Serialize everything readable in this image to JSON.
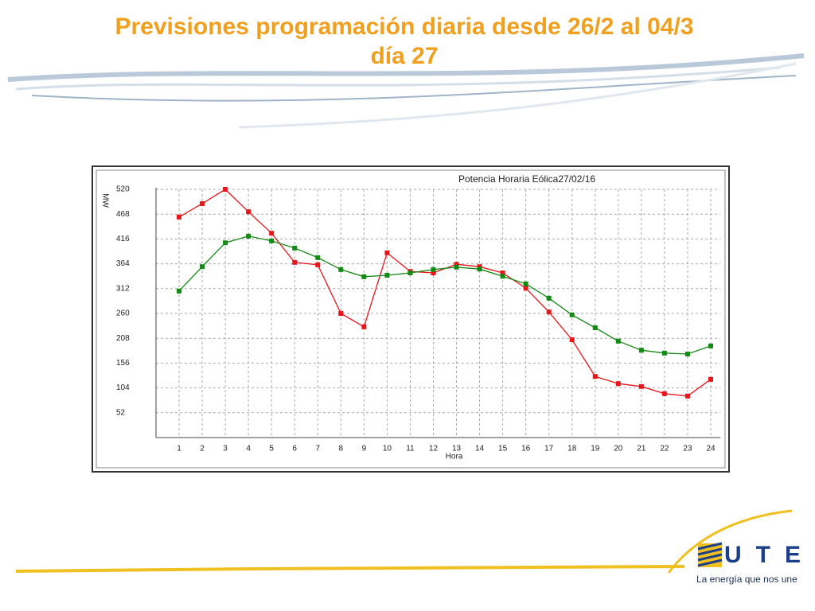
{
  "slide_title": [
    "Previsiones programación diaria desde 26/2 al 04/3",
    "día 27"
  ],
  "logo": {
    "mark": "UTE",
    "tagline": "La energía que nos une"
  },
  "chart_data": {
    "type": "line",
    "title": "Potencia Horaria Eólica27/02/16",
    "y_label": "MW",
    "x_label": "Hora",
    "categories": [
      "1",
      "2",
      "3",
      "4",
      "5",
      "6",
      "7",
      "8",
      "9",
      "10",
      "11",
      "12",
      "13",
      "14",
      "15",
      "16",
      "17",
      "18",
      "19",
      "20",
      "21",
      "22",
      "23",
      "24"
    ],
    "series": [
      {
        "color": "#e8151b",
        "values": [
          462,
          490,
          520,
          473,
          428,
          367,
          362,
          260,
          232,
          387,
          348,
          345,
          363,
          358,
          345,
          313,
          263,
          205,
          128,
          113,
          107,
          92,
          87,
          122
        ]
      },
      {
        "color": "#138a13",
        "values": [
          307,
          358,
          408,
          422,
          412,
          397,
          377,
          352,
          337,
          340,
          345,
          352,
          357,
          353,
          338,
          322,
          292,
          257,
          230,
          202,
          183,
          177,
          175,
          192
        ]
      }
    ],
    "ylim": [
      0,
      520
    ],
    "yticks": [
      52,
      104,
      156,
      208,
      260,
      312,
      364,
      416,
      468,
      520
    ],
    "grid": true
  }
}
